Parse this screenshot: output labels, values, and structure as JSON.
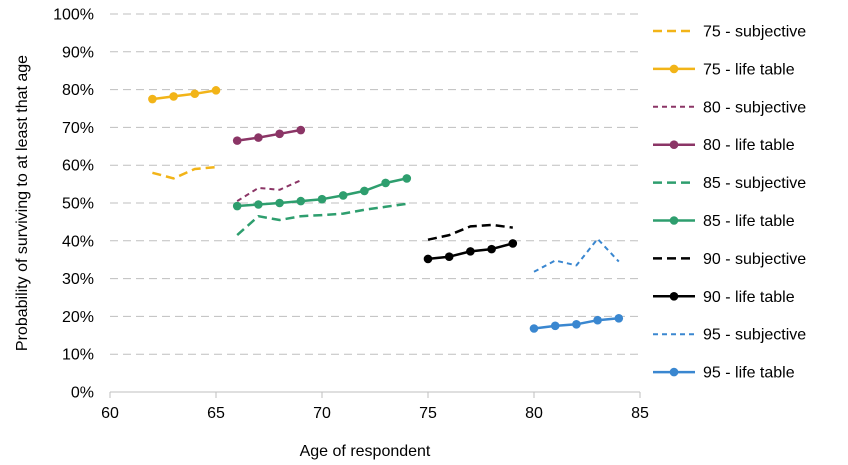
{
  "chart_data": {
    "type": "line",
    "title": "",
    "xlabel": "Age of respondent",
    "ylabel": "Probability of surviving to at least that age",
    "xlim": [
      60,
      85
    ],
    "ylim": [
      0,
      100
    ],
    "x_ticks": [
      60,
      65,
      70,
      75,
      80,
      85
    ],
    "y_ticks": [
      0,
      10,
      20,
      30,
      40,
      50,
      60,
      70,
      80,
      90,
      100
    ],
    "y_tick_suffix": "%",
    "grid": "horizontal dashed",
    "legend_position": "right",
    "series": [
      {
        "name": "75 - subjective",
        "color": "#F2B418",
        "style": "dashed",
        "markers": false,
        "width": 2.5,
        "x": [
          62,
          63,
          64,
          65
        ],
        "y": [
          58,
          56.5,
          59,
          59.5
        ]
      },
      {
        "name": "75 - life table",
        "color": "#F2B418",
        "style": "solid",
        "markers": true,
        "width": 2.5,
        "x": [
          62,
          63,
          64,
          65
        ],
        "y": [
          77.5,
          78.2,
          78.9,
          79.8
        ]
      },
      {
        "name": "80 - subjective",
        "color": "#8B3566",
        "style": "dashed",
        "markers": false,
        "width": 2,
        "x": [
          66,
          67,
          68,
          69
        ],
        "y": [
          50.5,
          54,
          53.5,
          56
        ]
      },
      {
        "name": "80 - life table",
        "color": "#8B3566",
        "style": "solid",
        "markers": true,
        "width": 2.5,
        "x": [
          66,
          67,
          68,
          69
        ],
        "y": [
          66.5,
          67.3,
          68.3,
          69.3
        ]
      },
      {
        "name": "85 - subjective",
        "color": "#2E9E6E",
        "style": "dashed",
        "markers": false,
        "width": 2.5,
        "x": [
          66,
          67,
          68,
          69,
          70,
          71,
          72,
          73,
          74
        ],
        "y": [
          41.5,
          46.5,
          45.5,
          46.5,
          46.8,
          47.2,
          48.2,
          49,
          49.8
        ]
      },
      {
        "name": "85 - life table",
        "color": "#2E9E6E",
        "style": "solid",
        "markers": true,
        "width": 2.5,
        "x": [
          66,
          67,
          68,
          69,
          70,
          71,
          72,
          73,
          74
        ],
        "y": [
          49.2,
          49.6,
          50,
          50.5,
          51,
          52,
          53.2,
          55.3,
          56.5
        ]
      },
      {
        "name": "90 - subjective",
        "color": "#000000",
        "style": "dashed",
        "markers": false,
        "width": 2.5,
        "x": [
          75,
          76,
          77,
          78,
          79
        ],
        "y": [
          40.3,
          41.5,
          43.8,
          44.2,
          43.5
        ]
      },
      {
        "name": "90 - life table",
        "color": "#000000",
        "style": "solid",
        "markers": true,
        "width": 2.5,
        "x": [
          75,
          76,
          77,
          78,
          79
        ],
        "y": [
          35.2,
          35.8,
          37.2,
          37.8,
          39.3
        ]
      },
      {
        "name": "95 - subjective",
        "color": "#3A87D0",
        "style": "dashed",
        "markers": false,
        "width": 2,
        "x": [
          80,
          81,
          82,
          83,
          84
        ],
        "y": [
          31.8,
          34.8,
          33.5,
          40.5,
          34.5
        ]
      },
      {
        "name": "95 - life table",
        "color": "#3A87D0",
        "style": "solid",
        "markers": true,
        "width": 2.5,
        "x": [
          80,
          81,
          82,
          83,
          84
        ],
        "y": [
          16.8,
          17.5,
          17.9,
          19,
          19.5
        ]
      }
    ]
  }
}
